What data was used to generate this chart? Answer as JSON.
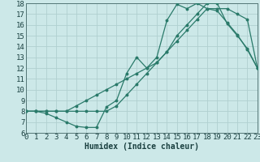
{
  "xlabel": "Humidex (Indice chaleur)",
  "bg_color": "#cce8e8",
  "line_color": "#2a7a6a",
  "grid_color": "#b0d0d0",
  "xlim": [
    0,
    23
  ],
  "ylim": [
    6,
    18
  ],
  "xticks": [
    0,
    1,
    2,
    3,
    4,
    5,
    6,
    7,
    8,
    9,
    10,
    11,
    12,
    13,
    14,
    15,
    16,
    17,
    18,
    19,
    20,
    21,
    22,
    23
  ],
  "yticks": [
    6,
    7,
    8,
    9,
    10,
    11,
    12,
    13,
    14,
    15,
    16,
    17,
    18
  ],
  "line1_x": [
    0,
    1,
    2,
    3,
    4,
    5,
    6,
    7,
    8,
    9,
    10,
    11,
    12,
    13,
    14,
    15,
    16,
    17,
    18,
    19,
    20,
    21,
    22,
    23
  ],
  "line1_y": [
    8.0,
    8.0,
    8.0,
    8.0,
    8.0,
    8.5,
    9.0,
    9.5,
    10.0,
    10.5,
    11.0,
    11.5,
    12.0,
    12.5,
    13.5,
    14.5,
    15.5,
    16.5,
    17.5,
    17.5,
    17.5,
    17.0,
    16.5,
    12.0
  ],
  "line2_x": [
    0,
    1,
    2,
    3,
    4,
    5,
    6,
    7,
    8,
    9,
    10,
    11,
    12,
    13,
    14,
    15,
    16,
    17,
    18,
    19,
    20,
    21,
    22,
    23
  ],
  "line2_y": [
    8.0,
    8.0,
    7.8,
    7.4,
    7.0,
    6.6,
    6.5,
    6.5,
    8.4,
    9.0,
    11.5,
    13.0,
    12.0,
    13.0,
    16.4,
    17.9,
    17.5,
    18.0,
    17.5,
    17.3,
    16.2,
    15.1,
    13.7,
    12.0
  ],
  "line3_x": [
    0,
    1,
    2,
    3,
    4,
    5,
    6,
    7,
    8,
    9,
    10,
    11,
    12,
    13,
    14,
    15,
    16,
    17,
    18,
    19,
    20,
    21,
    22,
    23
  ],
  "line3_y": [
    8.0,
    8.0,
    8.0,
    8.0,
    8.0,
    8.0,
    8.0,
    8.0,
    8.0,
    8.5,
    9.5,
    10.5,
    11.5,
    12.5,
    13.5,
    15.0,
    16.0,
    17.0,
    18.0,
    18.0,
    16.1,
    15.0,
    13.8,
    12.0
  ],
  "font_family": "monospace",
  "tick_fontsize": 6.5,
  "xlabel_fontsize": 7.0
}
